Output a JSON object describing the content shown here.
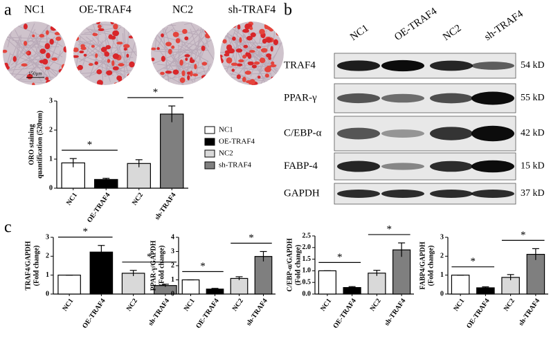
{
  "panels": {
    "a": "a",
    "b": "b",
    "c": "c"
  },
  "images": {
    "labels": [
      "NC1",
      "OE-TRAF4",
      "NC2",
      "sh-TRAF4"
    ],
    "scale_bar": "150μm"
  },
  "blot": {
    "lanes": [
      "NC1",
      "OE-TRAF4",
      "NC2",
      "sh-TRAF4"
    ],
    "rows": [
      {
        "protein": "TRAF4",
        "size": "54 kD"
      },
      {
        "protein": "PPAR-γ",
        "size": "55 kD"
      },
      {
        "protein": "C/EBP-α",
        "size": "42 kD"
      },
      {
        "protein": "FABP-4",
        "size": "15 kD"
      },
      {
        "protein": "GAPDH",
        "size": "37 kD"
      }
    ]
  },
  "chart_data": [
    {
      "type": "bar",
      "ylabel": [
        "ORO staining",
        "quantification (520nm)"
      ],
      "categories": [
        "NC1",
        "OE-TRAF4",
        "NC2",
        "sh-TRAF4"
      ],
      "values": [
        0.87,
        0.3,
        0.85,
        2.55
      ],
      "errors": [
        0.15,
        0.04,
        0.13,
        0.28
      ],
      "colors": [
        "#ffffff",
        "#000000",
        "#d9d9d9",
        "#7f7f7f"
      ],
      "ylim": [
        0,
        3
      ],
      "yticks": [
        0,
        1,
        2,
        3
      ],
      "legend": "right",
      "significance": [
        {
          "pair": [
            0,
            1
          ],
          "label": "*"
        },
        {
          "pair": [
            2,
            3
          ],
          "label": "*"
        }
      ]
    },
    {
      "type": "bar",
      "ylabel": [
        "TRAF4/GAPDH",
        "(Fold change)"
      ],
      "categories": [
        "NC1",
        "OE-TRAF4",
        "NC2",
        "sh-TRAF4"
      ],
      "values": [
        1,
        2.22,
        1.1,
        0.45
      ],
      "errors": [
        0,
        0.35,
        0.15,
        0.07
      ],
      "colors": [
        "#ffffff",
        "#000000",
        "#d9d9d9",
        "#7f7f7f"
      ],
      "ylim": [
        0,
        3
      ],
      "yticks": [
        0,
        1,
        2,
        3
      ],
      "significance": [
        {
          "pair": [
            0,
            1
          ],
          "label": "*"
        },
        {
          "pair": [
            2,
            3
          ],
          "label": "*"
        }
      ]
    },
    {
      "type": "bar",
      "ylabel": [
        "PPAR-γ/GAPDH",
        "(Fold change)"
      ],
      "categories": [
        "NC1",
        "OE-TRAF4",
        "NC2",
        "sh-TRAF4"
      ],
      "values": [
        1,
        0.35,
        1.1,
        2.65
      ],
      "errors": [
        0,
        0.05,
        0.12,
        0.35
      ],
      "colors": [
        "#ffffff",
        "#000000",
        "#d9d9d9",
        "#7f7f7f"
      ],
      "ylim": [
        0,
        4
      ],
      "yticks": [
        0,
        1,
        2,
        3,
        4
      ],
      "significance": [
        {
          "pair": [
            0,
            1
          ],
          "label": "*"
        },
        {
          "pair": [
            2,
            3
          ],
          "label": "*"
        }
      ]
    },
    {
      "type": "bar",
      "ylabel": [
        "C/EBP-α/GAPDH",
        "(Fold change)"
      ],
      "categories": [
        "NC1",
        "OE-TRAF4",
        "NC2",
        "sh-TRAF4"
      ],
      "values": [
        1,
        0.28,
        0.9,
        1.9
      ],
      "errors": [
        0,
        0.04,
        0.12,
        0.3
      ],
      "colors": [
        "#ffffff",
        "#000000",
        "#d9d9d9",
        "#7f7f7f"
      ],
      "ylim": [
        0,
        2.5
      ],
      "yticks": [
        {
          "value": 0,
          "label": "0.0"
        },
        0.5,
        {
          "value": 1,
          "label": "1.0"
        },
        1.5,
        {
          "value": 2,
          "label": "2.0"
        },
        2.5
      ],
      "significance": [
        {
          "pair": [
            0,
            1
          ],
          "label": "*"
        },
        {
          "pair": [
            2,
            3
          ],
          "label": "*"
        }
      ]
    },
    {
      "type": "bar",
      "ylabel": [
        "FABP4/GAPDH",
        "(Fold change)"
      ],
      "categories": [
        "NC1",
        "OE-TRAF4",
        "NC2",
        "sh-TRAF4"
      ],
      "values": [
        1,
        0.33,
        0.88,
        2.1
      ],
      "errors": [
        0,
        0.05,
        0.15,
        0.3
      ],
      "colors": [
        "#ffffff",
        "#000000",
        "#d9d9d9",
        "#7f7f7f"
      ],
      "ylim": [
        0,
        3
      ],
      "yticks": [
        0,
        1,
        2,
        3
      ],
      "significance": [
        {
          "pair": [
            0,
            1
          ],
          "label": "*"
        },
        {
          "pair": [
            2,
            3
          ],
          "label": "*"
        }
      ]
    }
  ]
}
